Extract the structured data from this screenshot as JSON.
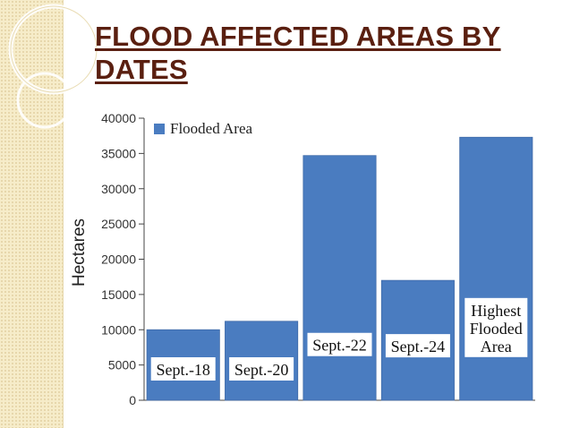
{
  "slide": {
    "title": "FLOOD AFFECTED AREAS BY DATES"
  },
  "colors": {
    "bar": "#4a7cc0",
    "bar_stroke": "#3f6aa8",
    "title": "#5a1f10",
    "strip": "#f6ecc9"
  },
  "chart_data": {
    "type": "bar",
    "title": "",
    "xlabel": "",
    "ylabel": "Hectares",
    "ylim": [
      0,
      40000
    ],
    "yticks": [
      0,
      5000,
      10000,
      15000,
      20000,
      25000,
      30000,
      35000,
      40000
    ],
    "legend": {
      "position": "top-left",
      "entries": [
        "Flooded Area"
      ]
    },
    "grid": false,
    "series": [
      {
        "name": "Flooded Area",
        "values": [
          10000,
          11200,
          34700,
          17000,
          37300
        ]
      }
    ],
    "bar_labels": [
      [
        "Sept.-18"
      ],
      [
        "Sept.-20"
      ],
      [
        "Sept.-22"
      ],
      [
        "Sept.-24"
      ],
      [
        "Highest",
        "Flooded",
        "Area"
      ]
    ]
  }
}
